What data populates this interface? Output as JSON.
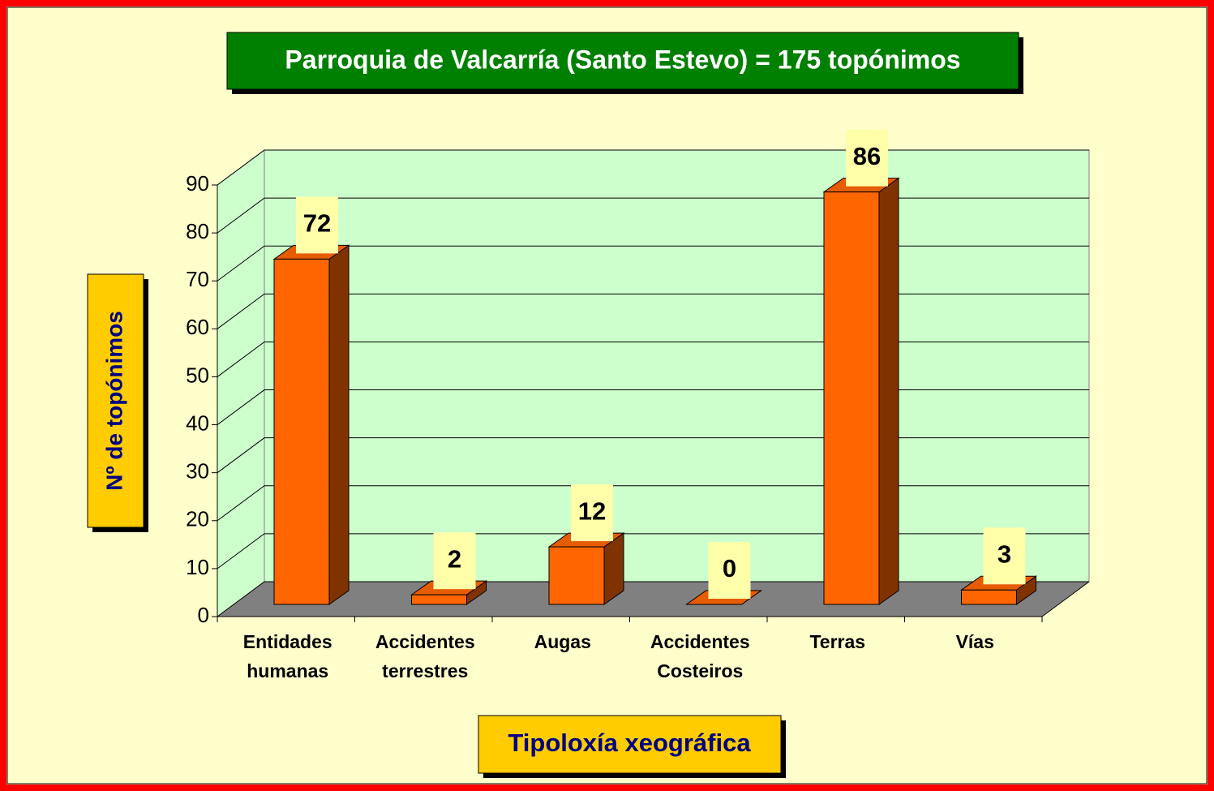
{
  "chart_data": {
    "type": "bar3d",
    "title": "Parroquia de Valcarría (Santo Estevo) = 175 topónimos",
    "y_label": "Nº de topónimos",
    "x_label": "Tipoloxía xeográfica",
    "categories": [
      "Entidades humanas",
      "Accidentes terrestres",
      "Augas",
      "Accidentes Costeiros",
      "Terras",
      "Vías"
    ],
    "values": [
      72,
      2,
      12,
      0,
      86,
      3
    ],
    "color": "#ff6600",
    "ylim": [
      0,
      90
    ],
    "yticks": [
      0,
      10,
      20,
      30,
      40,
      50,
      60,
      70,
      80,
      90
    ],
    "grid": true
  }
}
